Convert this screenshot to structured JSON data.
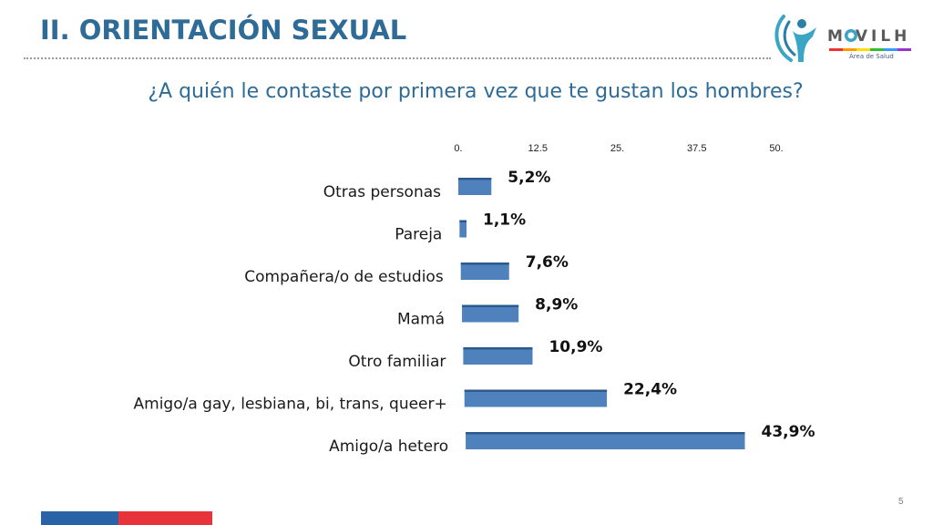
{
  "header": {
    "title": "II. ORIENTACIÓN SEXUAL",
    "logo_text": "M   VILH",
    "logo_subtitle": "Área de Salud"
  },
  "question": "¿A quién le contaste por primera vez que te gustan los hombres?",
  "page_number": "5",
  "colors": {
    "title": "#2e6b96",
    "bar": "#4f81bd",
    "bar_top": "#2c5a8c",
    "footer_blue": "#2a62a8",
    "footer_red": "#e8333b"
  },
  "chart_data": {
    "type": "bar",
    "orientation": "horizontal",
    "title": "¿A quién le contaste por primera vez que te gustan los hombres?",
    "categories": [
      "Otras personas",
      "Pareja",
      "Compañera/o de estudios",
      "Mamá",
      "Otro familiar",
      "Amigo/a gay, lesbiana, bi, trans, queer+",
      "Amigo/a hetero"
    ],
    "values": [
      5.2,
      1.1,
      7.6,
      8.9,
      10.9,
      22.4,
      43.9
    ],
    "value_labels": [
      "5,2%",
      "1,1%",
      "7,6%",
      "8,9%",
      "10,9%",
      "22,4%",
      "43,9%"
    ],
    "x_ticks": [
      "0.",
      "12.5",
      "25.",
      "37.5",
      "50."
    ],
    "xlim": [
      0,
      50
    ],
    "grid": false,
    "legend": "none"
  }
}
